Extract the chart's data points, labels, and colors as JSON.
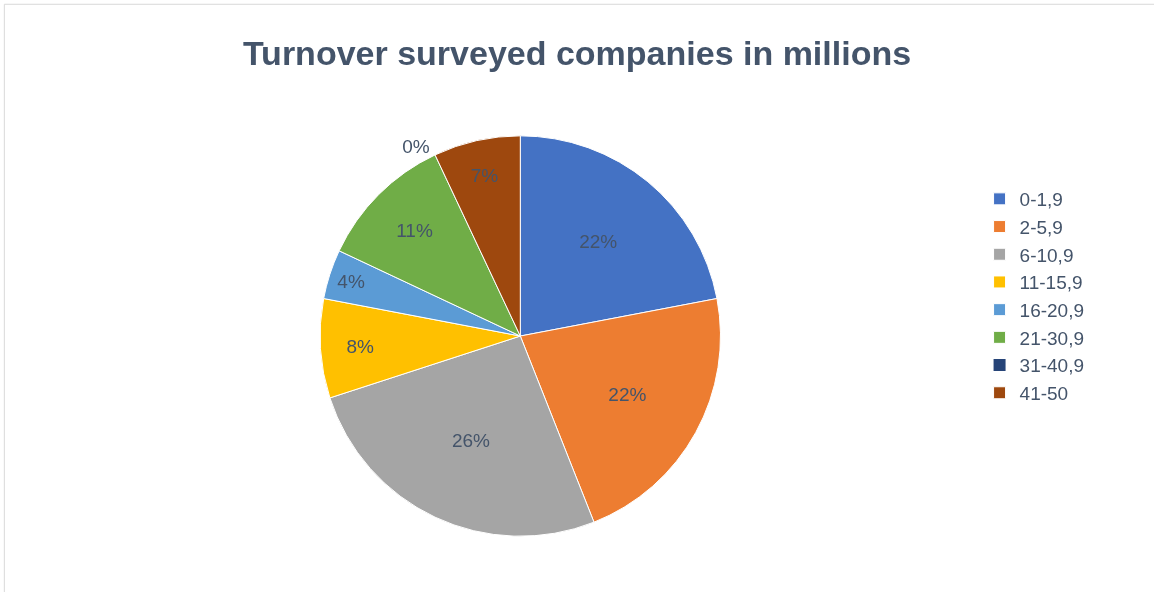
{
  "chart_data": {
    "type": "pie",
    "title": "Turnover surveyed companies in millions",
    "categories": [
      "0-1,9",
      "2-5,9",
      "6-10,9",
      "11-15,9",
      "16-20,9",
      "21-30,9",
      "31-40,9",
      "41-50"
    ],
    "values": [
      22,
      22,
      26,
      8,
      4,
      11,
      0,
      7
    ],
    "value_labels": [
      "22%",
      "22%",
      "26%",
      "8%",
      "4%",
      "11%",
      "0%",
      "7%"
    ],
    "colors": [
      "#4472c4",
      "#ed7d31",
      "#a5a5a5",
      "#ffc000",
      "#5b9bd5",
      "#70ad47",
      "#264478",
      "#9e480e"
    ],
    "legend": "right"
  }
}
